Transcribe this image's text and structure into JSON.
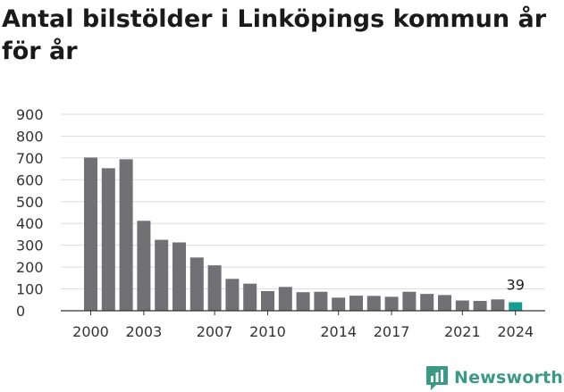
{
  "title": "Antal bilstölder i Linköpings kommun år för år",
  "brand": {
    "name": "Newsworthy"
  },
  "colors": {
    "bar": "#707075",
    "highlight": "#13a093",
    "grid": "#dedede",
    "axis": "#333333",
    "brand": "#3a9a86"
  },
  "chart_data": {
    "type": "bar",
    "title": "Antal bilstölder i Linköpings kommun år för år",
    "xlabel": "",
    "ylabel": "",
    "categories": [
      "2000",
      "2001",
      "2002",
      "2003",
      "2004",
      "2005",
      "2006",
      "2007",
      "2008",
      "2009",
      "2010",
      "2011",
      "2012",
      "2013",
      "2014",
      "2015",
      "2016",
      "2017",
      "2018",
      "2019",
      "2020",
      "2021",
      "2022",
      "2023",
      "2024"
    ],
    "values": [
      702,
      653,
      694,
      412,
      325,
      313,
      244,
      208,
      146,
      124,
      90,
      109,
      85,
      87,
      60,
      69,
      68,
      64,
      87,
      77,
      72,
      47,
      45,
      52,
      39
    ],
    "x_tick_labels": [
      "2000",
      "2003",
      "2007",
      "2010",
      "2014",
      "2017",
      "2021",
      "2024"
    ],
    "ylim": [
      0,
      900
    ],
    "y_ticks": [
      0,
      100,
      200,
      300,
      400,
      500,
      600,
      700,
      800,
      900
    ],
    "highlight_category": "2024",
    "data_labels": [
      {
        "category": "2024",
        "text": "39"
      }
    ],
    "grid": true,
    "legend": "none"
  }
}
